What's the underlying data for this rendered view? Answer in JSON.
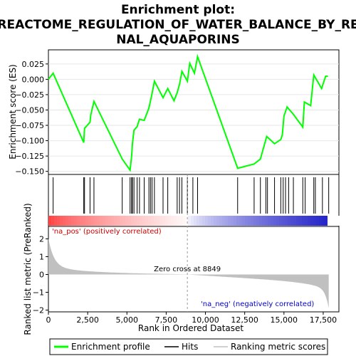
{
  "chart_data": {
    "type": "line",
    "title": "Enrichment plot: REACTOME_REGULATION_OF_WATER_BALANCE_BY_RENAL_AQUAPORINS",
    "title_lines": [
      "Enrichment plot:",
      "REACTOME_REGULATION_OF_WATER_BALANCE_BY_RE",
      "NAL_AQUAPORINS"
    ],
    "top_panel": {
      "ylabel": "Enrichment score (ES)",
      "ylim": [
        -0.155,
        0.048
      ],
      "yticks": [
        -0.15,
        -0.125,
        -0.1,
        -0.075,
        -0.05,
        -0.025,
        0.0,
        0.025
      ],
      "ytick_labels": [
        "−0.150",
        "−0.125",
        "−0.100",
        "−0.075",
        "−0.050",
        "−0.025",
        "0.000",
        "0.025"
      ],
      "series": {
        "name": "Enrichment profile",
        "color": "#00ff00",
        "x": [
          0,
          300,
          2250,
          2300,
          2650,
          2700,
          2900,
          4700,
          5200,
          5300,
          5350,
          5450,
          5650,
          5800,
          6100,
          6400,
          6500,
          6600,
          6750,
          7300,
          7600,
          8000,
          8200,
          8350,
          8500,
          8850,
          9000,
          9300,
          9500,
          12050,
          13100,
          13500,
          13900,
          14400,
          14800,
          14900,
          15000,
          15200,
          15600,
          16200,
          16300,
          16700,
          16900,
          17400,
          17650,
          17800
        ],
        "y": [
          0.0,
          0.01,
          -0.103,
          -0.08,
          -0.07,
          -0.058,
          -0.036,
          -0.13,
          -0.148,
          -0.125,
          -0.105,
          -0.083,
          -0.077,
          -0.065,
          -0.067,
          -0.047,
          -0.035,
          -0.023,
          -0.003,
          -0.03,
          -0.015,
          -0.035,
          -0.022,
          -0.008,
          0.013,
          -0.003,
          0.026,
          0.01,
          0.037,
          -0.145,
          -0.138,
          -0.13,
          -0.093,
          -0.105,
          -0.098,
          -0.09,
          -0.06,
          -0.045,
          -0.057,
          -0.078,
          -0.037,
          -0.043,
          0.007,
          -0.015,
          0.005,
          0.005
        ]
      }
    },
    "hits": {
      "name": "Hits",
      "x": [
        300,
        2250,
        2300,
        2650,
        2900,
        4700,
        5200,
        5300,
        5350,
        5450,
        5650,
        5800,
        6100,
        6400,
        6500,
        6600,
        6750,
        7300,
        7600,
        8200,
        8350,
        8500,
        8850,
        9200,
        9500,
        12050,
        13100,
        13500,
        13850,
        13950,
        14400,
        14800,
        14950,
        15100,
        15300,
        15600,
        16200,
        16350,
        16900,
        17000,
        17450,
        17850
      ]
    },
    "ranking": {
      "zero_cross": 8849,
      "zero_cross_label": "Zero cross at 8849",
      "pos_label": "'na_pos' (positively correlated)",
      "neg_label": "'na_neg' (negatively correlated)",
      "ylabel": "Ranked list metric (PreRanked)",
      "ylim": [
        -2.1,
        2.7
      ],
      "yticks": [
        2,
        1,
        0,
        -1,
        -2
      ],
      "ytick_labels": [
        "2",
        "1",
        "0",
        "−1",
        "−2"
      ]
    },
    "x_axis": {
      "xlabel": "Rank in Ordered Dataset",
      "xlim": [
        0,
        18500
      ],
      "xticks": [
        0,
        2500,
        5000,
        7500,
        10000,
        12500,
        15000,
        17500
      ],
      "xtick_labels": [
        "0",
        "2,500",
        "5,000",
        "7,500",
        "10,000",
        "12,500",
        "15,000",
        "17,500"
      ]
    },
    "legend": [
      {
        "label": "Enrichment profile",
        "color": "#00ff00"
      },
      {
        "label": "Hits",
        "color": "#000000"
      },
      {
        "label": "Ranking metric scores",
        "color": "#c0c0c0"
      }
    ]
  }
}
